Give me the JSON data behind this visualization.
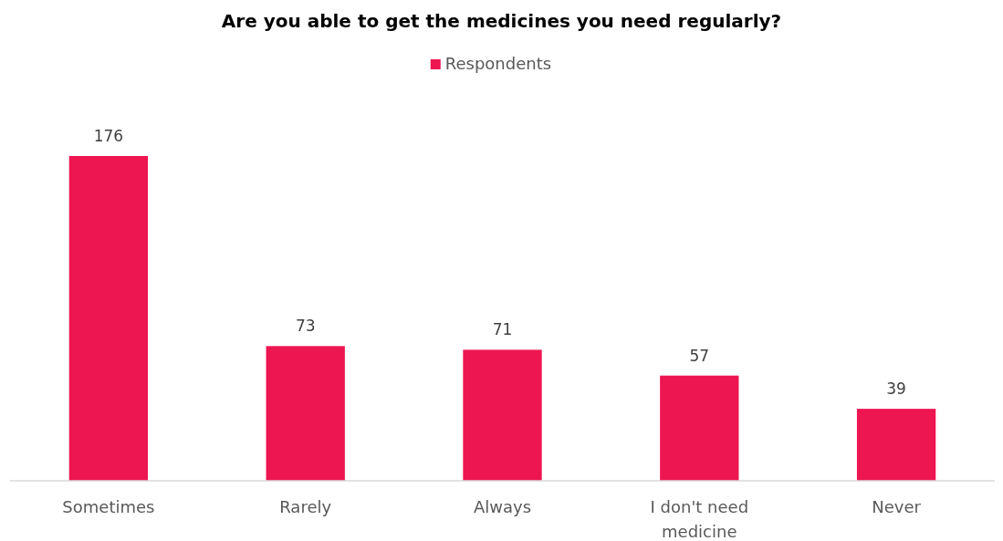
{
  "chart_data": {
    "type": "bar",
    "title": "Are you able to get the medicines you need regularly?",
    "categories": [
      "Sometimes",
      "Rarely",
      "Always",
      "I don't need medicine",
      "Never"
    ],
    "series": [
      {
        "name": "Respondents",
        "color": "#ed1651",
        "values": [
          176,
          73,
          71,
          57,
          39
        ]
      }
    ],
    "data_labels": true,
    "legend": "top"
  }
}
